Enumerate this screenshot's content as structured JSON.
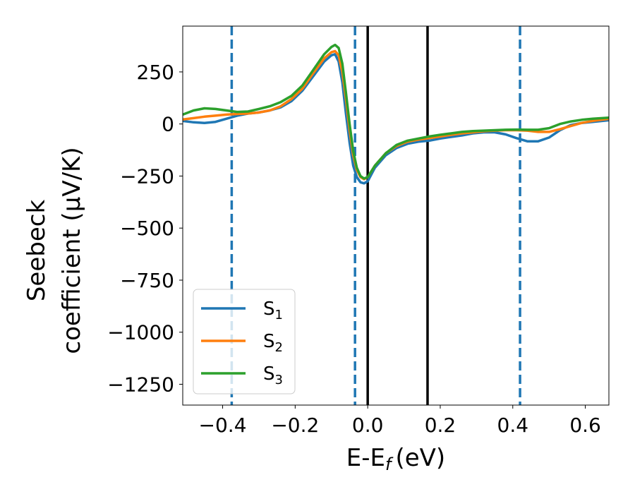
{
  "chart_data": {
    "type": "line",
    "xlabel": "E-E",
    "xlabel_sub": "f",
    "xlabel_unit": "(eV)",
    "ylabel_line1": "Seebeck",
    "ylabel_line2": "coefficient  (μV/K)",
    "xlim": [
      -0.51,
      0.665
    ],
    "ylim": [
      -1350,
      470
    ],
    "xticks": [
      -0.4,
      -0.2,
      0.0,
      0.2,
      0.4,
      0.6
    ],
    "xtick_labels": [
      "−0.4",
      "−0.2",
      "0.0",
      "0.2",
      "0.4",
      "0.6"
    ],
    "yticks": [
      250,
      0,
      -250,
      -500,
      -750,
      -1000,
      -1250
    ],
    "ytick_labels": [
      "250",
      "0",
      "−250",
      "−500",
      "−750",
      "−1000",
      "−1250"
    ],
    "legend_position": "lower-left",
    "vlines_solid": [
      0.0,
      0.165
    ],
    "vlines_dashed": [
      -0.375,
      -0.035,
      0.42
    ],
    "colors": {
      "S1": "#1f77b4",
      "S2": "#ff7f0e",
      "S3": "#2ca02c",
      "solid_line": "#000000",
      "dashed_line": "#1f77b4"
    },
    "series": [
      {
        "name": "S1",
        "label_main": "S",
        "label_sub": "1",
        "color": "#1f77b4",
        "x": [
          -0.51,
          -0.48,
          -0.45,
          -0.42,
          -0.39,
          -0.36,
          -0.33,
          -0.3,
          -0.27,
          -0.24,
          -0.21,
          -0.18,
          -0.15,
          -0.12,
          -0.1,
          -0.09,
          -0.08,
          -0.07,
          -0.06,
          -0.05,
          -0.04,
          -0.03,
          -0.02,
          -0.01,
          0.0,
          0.02,
          0.05,
          0.08,
          0.11,
          0.14,
          0.17,
          0.2,
          0.23,
          0.26,
          0.29,
          0.32,
          0.35,
          0.38,
          0.41,
          0.44,
          0.47,
          0.5,
          0.53,
          0.56,
          0.59,
          0.62,
          0.665
        ],
        "y": [
          15,
          8,
          5,
          10,
          25,
          40,
          50,
          55,
          65,
          80,
          110,
          160,
          230,
          300,
          330,
          335,
          300,
          200,
          50,
          -90,
          -200,
          -255,
          -280,
          -285,
          -275,
          -210,
          -150,
          -115,
          -95,
          -85,
          -80,
          -70,
          -62,
          -55,
          -45,
          -40,
          -40,
          -50,
          -68,
          -83,
          -83,
          -65,
          -30,
          -5,
          5,
          10,
          18
        ]
      },
      {
        "name": "S2",
        "label_main": "S",
        "label_sub": "2",
        "color": "#ff7f0e",
        "x": [
          -0.51,
          -0.48,
          -0.45,
          -0.42,
          -0.39,
          -0.36,
          -0.33,
          -0.3,
          -0.27,
          -0.24,
          -0.21,
          -0.18,
          -0.15,
          -0.12,
          -0.1,
          -0.09,
          -0.08,
          -0.07,
          -0.06,
          -0.05,
          -0.04,
          -0.03,
          -0.02,
          -0.01,
          0.0,
          0.02,
          0.05,
          0.08,
          0.11,
          0.14,
          0.17,
          0.2,
          0.23,
          0.26,
          0.29,
          0.32,
          0.35,
          0.38,
          0.41,
          0.44,
          0.47,
          0.5,
          0.53,
          0.56,
          0.59,
          0.62,
          0.665
        ],
        "y": [
          22,
          28,
          35,
          40,
          45,
          48,
          50,
          55,
          65,
          85,
          120,
          170,
          245,
          315,
          345,
          350,
          330,
          250,
          120,
          -30,
          -150,
          -220,
          -255,
          -265,
          -255,
          -200,
          -140,
          -105,
          -85,
          -75,
          -68,
          -60,
          -52,
          -45,
          -40,
          -35,
          -32,
          -30,
          -30,
          -32,
          -38,
          -38,
          -25,
          -10,
          5,
          15,
          25
        ]
      },
      {
        "name": "S3",
        "label_main": "S",
        "label_sub": "3",
        "color": "#2ca02c",
        "x": [
          -0.51,
          -0.48,
          -0.45,
          -0.42,
          -0.39,
          -0.36,
          -0.33,
          -0.3,
          -0.27,
          -0.24,
          -0.21,
          -0.18,
          -0.15,
          -0.12,
          -0.1,
          -0.09,
          -0.08,
          -0.07,
          -0.06,
          -0.05,
          -0.04,
          -0.03,
          -0.02,
          -0.01,
          0.0,
          0.02,
          0.05,
          0.08,
          0.11,
          0.14,
          0.17,
          0.2,
          0.23,
          0.26,
          0.29,
          0.32,
          0.35,
          0.38,
          0.41,
          0.44,
          0.47,
          0.5,
          0.53,
          0.56,
          0.59,
          0.62,
          0.665
        ],
        "y": [
          45,
          65,
          75,
          72,
          65,
          58,
          60,
          72,
          85,
          105,
          135,
          185,
          260,
          335,
          370,
          380,
          365,
          290,
          150,
          0,
          -130,
          -210,
          -250,
          -262,
          -255,
          -200,
          -140,
          -100,
          -80,
          -70,
          -60,
          -52,
          -45,
          -38,
          -34,
          -32,
          -30,
          -28,
          -27,
          -28,
          -28,
          -20,
          0,
          12,
          20,
          25,
          30
        ]
      }
    ]
  }
}
